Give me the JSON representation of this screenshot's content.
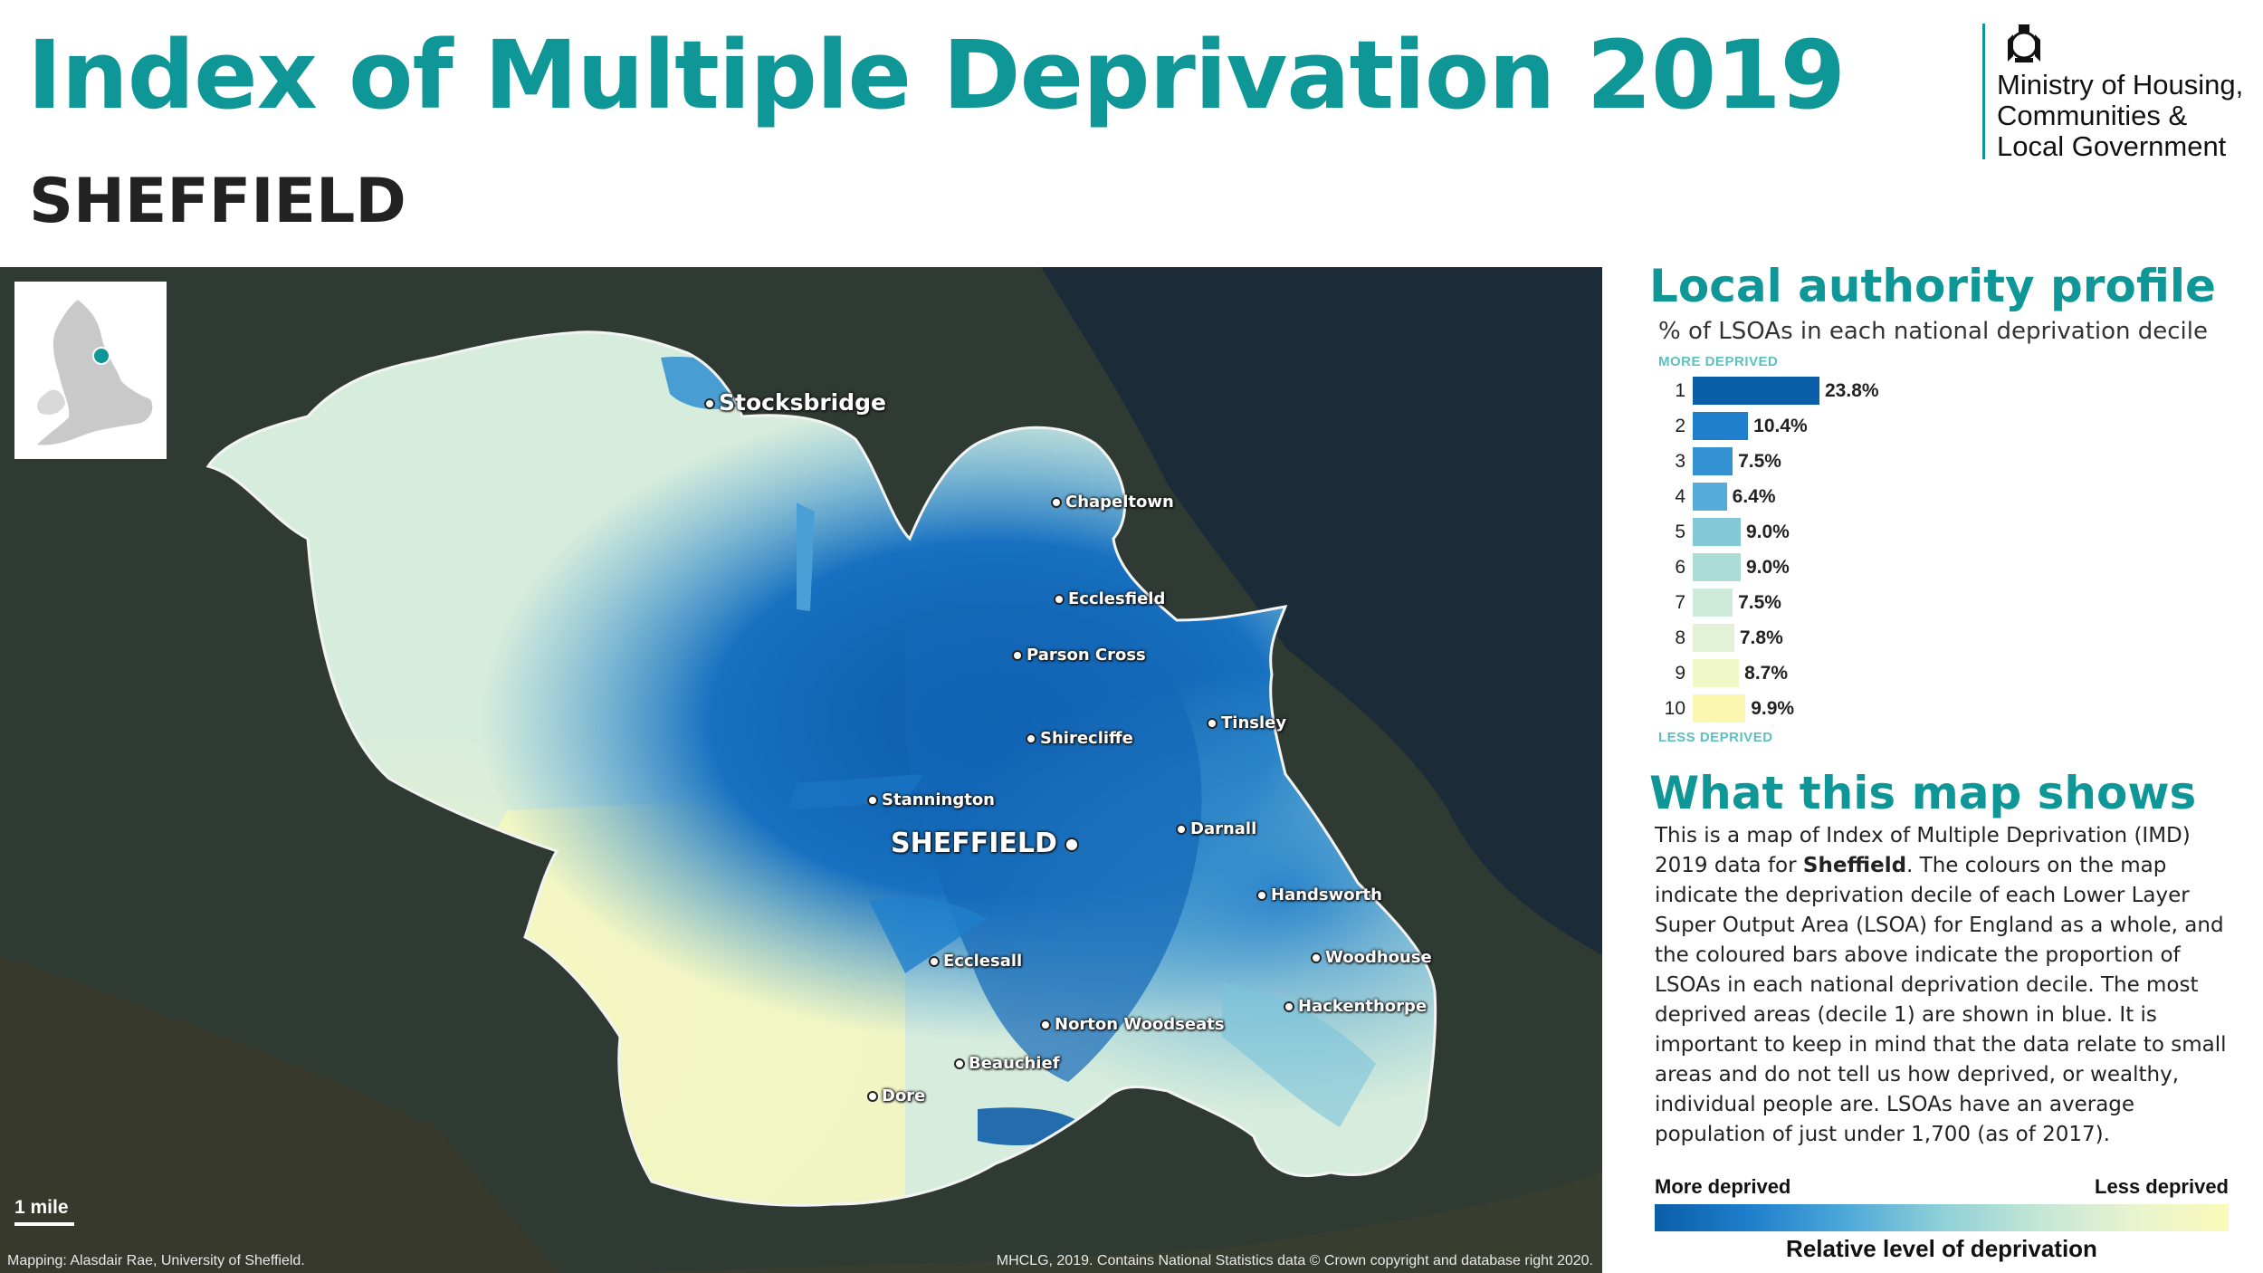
{
  "title": "Index of Multiple Deprivation 2019",
  "subtitle": "SHEFFIELD",
  "logo": {
    "org_lines": [
      "Ministry of Housing,",
      "Communities &",
      "Local Government"
    ],
    "icon": "royal-crest-icon"
  },
  "map": {
    "scale_label": "1 mile",
    "credit_left": "Mapping: Alasdair Rae, University of Sheffield.",
    "credit_right": "MHCLG, 2019. Contains National Statistics data © Crown copyright and database right 2020.",
    "places": [
      "Stocksbridge",
      "Chapeltown",
      "Ecclesfield",
      "Parson Cross",
      "Tinsley",
      "Shirecliffe",
      "Stannington",
      "SHEFFIELD",
      "Darnall",
      "Handsworth",
      "Woodhouse",
      "Ecclesall",
      "Hackenthorpe",
      "Norton Woodseats",
      "Beauchief",
      "Dore"
    ]
  },
  "profile": {
    "heading": "Local authority profile",
    "subheading": "% of LSOAs in each national deprivation decile",
    "top_tag": "MORE DEPRIVED",
    "bottom_tag": "LESS DEPRIVED",
    "deciles": [
      {
        "decile": "1",
        "value": 23.8,
        "label": "23.8%",
        "color": "#0b5ea8"
      },
      {
        "decile": "2",
        "value": 10.4,
        "label": "10.4%",
        "color": "#1f7fcc"
      },
      {
        "decile": "3",
        "value": 7.5,
        "label": "7.5%",
        "color": "#3592d2"
      },
      {
        "decile": "4",
        "value": 6.4,
        "label": "6.4%",
        "color": "#55acd8"
      },
      {
        "decile": "5",
        "value": 9.0,
        "label": "9.0%",
        "color": "#83c8d6"
      },
      {
        "decile": "6",
        "value": 9.0,
        "label": "9.0%",
        "color": "#abdcd6"
      },
      {
        "decile": "7",
        "value": 7.5,
        "label": "7.5%",
        "color": "#cdeada"
      },
      {
        "decile": "8",
        "value": 7.8,
        "label": "7.8%",
        "color": "#e2f2d6"
      },
      {
        "decile": "9",
        "value": 8.7,
        "label": "8.7%",
        "color": "#f1f8c8"
      },
      {
        "decile": "10",
        "value": 9.9,
        "label": "9.9%",
        "color": "#fbf7b0"
      }
    ]
  },
  "shows": {
    "heading": "What this map shows",
    "text_before": "This is a map of Index of Multiple Deprivation (IMD) 2019 data for ",
    "text_bold": "Sheffield",
    "text_after": ". The colours on the map indicate the deprivation decile of each Lower Layer Super Output Area (LSOA) for England as a whole, and the coloured bars above indicate the proportion of LSOAs in each national deprivation decile. The most deprived areas (decile 1) are shown in blue. It is important to keep in mind that the data relate to small areas and do not tell us how deprived, or wealthy, individual people are. LSOAs have an average population of just under 1,700 (as of 2017)."
  },
  "legend": {
    "left": "More deprived",
    "right": "Less deprived",
    "caption": "Relative level of deprivation"
  }
}
